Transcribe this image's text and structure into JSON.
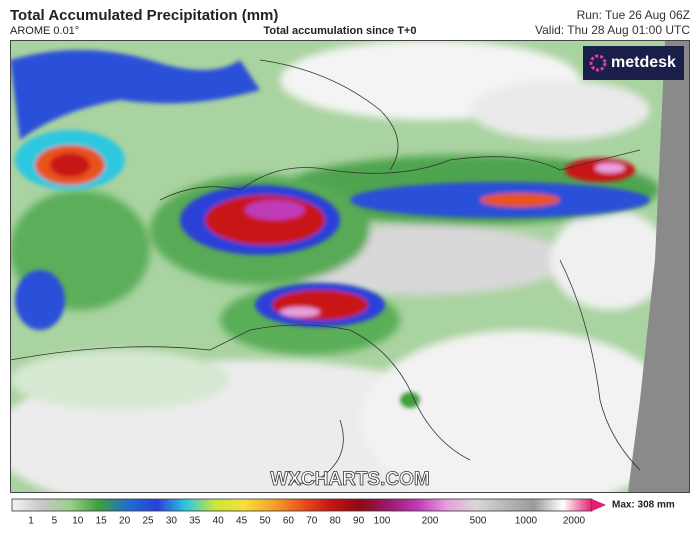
{
  "header": {
    "title": "Total Accumulated Precipitation (mm)",
    "model": "AROME 0.01°",
    "subtitle": "Total accumulation since T+0",
    "run": "Run: Tue 26 Aug 06Z",
    "valid": "Valid: Thu 28 Aug 01:00 UTC"
  },
  "logo": "metdesk",
  "watermark": "WXCHARTS.COM",
  "colorbar": {
    "ticks": [
      1,
      5,
      10,
      15,
      20,
      25,
      30,
      35,
      40,
      45,
      50,
      60,
      70,
      80,
      90,
      100,
      200,
      500,
      1000,
      2000
    ],
    "colors": [
      "#f4f4f4",
      "#c8c8c8",
      "#9ccf8c",
      "#3f9e3c",
      "#1f6fd0",
      "#2a3fd8",
      "#2fc7e0",
      "#c8e83a",
      "#f6e03a",
      "#f6a22a",
      "#e8521e",
      "#c81414",
      "#8e0a14",
      "#9a1a6e",
      "#c03ab8",
      "#e8a0e0",
      "#d8d8d8",
      "#b8b8b8",
      "#9a9a9a",
      "#ffffff",
      "#e02070"
    ],
    "max": "Max: 308 mm"
  }
}
